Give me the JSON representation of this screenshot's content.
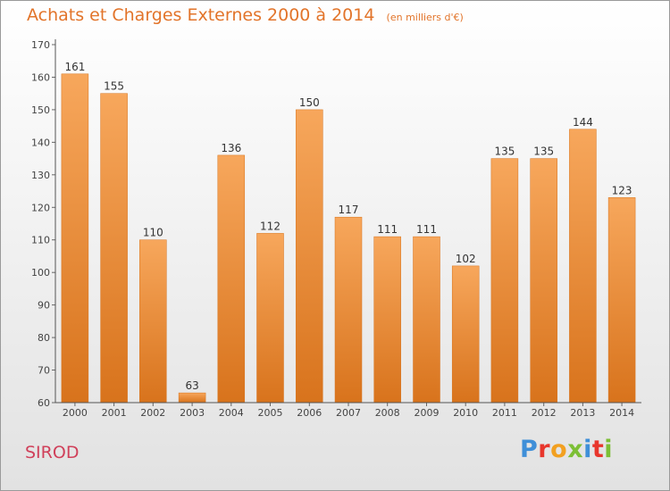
{
  "chart_data": {
    "type": "bar",
    "title": "Achats et Charges Externes 2000 à 2014",
    "subtitle": "(en milliers d'€)",
    "xlabel": "",
    "ylabel": "",
    "categories": [
      "2000",
      "2001",
      "2002",
      "2003",
      "2004",
      "2005",
      "2006",
      "2007",
      "2008",
      "2009",
      "2010",
      "2011",
      "2012",
      "2013",
      "2014"
    ],
    "values": [
      161,
      155,
      110,
      63,
      136,
      112,
      150,
      117,
      111,
      111,
      102,
      135,
      135,
      144,
      123
    ],
    "ylim": [
      60,
      170
    ],
    "yticks": [
      60,
      70,
      80,
      90,
      100,
      110,
      120,
      130,
      140,
      150,
      160,
      170
    ],
    "grid": false,
    "legend": "none",
    "bar_color": "#f28a2e",
    "bar_color_light": "#f7a75c",
    "bar_color_dark": "#d8731c"
  },
  "footer": {
    "commune": "SIROD",
    "brand": "Proxiti",
    "brand_colors": [
      "#3f8fd8",
      "#e8362c",
      "#f2a020",
      "#7cbf35",
      "#3f8fd8",
      "#e8362c",
      "#7cbf35"
    ]
  },
  "colors": {
    "title": "#e2742a",
    "commune": "#d0405a"
  }
}
